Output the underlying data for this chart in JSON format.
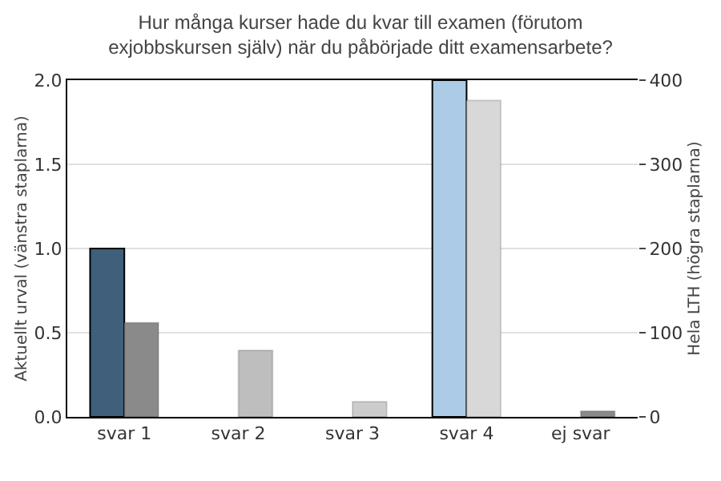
{
  "chart_data": {
    "type": "bar",
    "title": "Hur många kurser hade du kvar till examen (förutom exjobbskursen själv) när du påbörjade ditt examensarbete?",
    "categories": [
      "svar 1",
      "svar 2",
      "svar 3",
      "svar 4",
      "ej svar"
    ],
    "ylabel": "Aktuellt urval (vänstra staplarna)",
    "y2label": "Hela LTH (högra staplarna)",
    "series": [
      {
        "colors": [
          "#3f5f7a",
          "#3f5f7a",
          "#3f5f7a",
          "#abcbe6",
          "#3f5f7a"
        ],
        "values": [
          1.0,
          null,
          null,
          2.0,
          null
        ]
      },
      {
        "colors": [
          "#8a8a8a",
          "#bebebe",
          "#cccccc",
          "#d8d8d8",
          "#8a8a8a"
        ],
        "values": [
          112,
          79,
          18,
          376,
          7
        ],
        "axis": "y2"
      }
    ],
    "ylim": [
      0,
      2
    ],
    "yticks": [
      {
        "value": 0,
        "label": "0.0"
      },
      {
        "value": 0.5,
        "label": "0.5"
      },
      {
        "value": 1,
        "label": "1.0"
      },
      {
        "value": 1.5,
        "label": "1.5"
      },
      {
        "value": 2,
        "label": "2.0"
      }
    ],
    "y2lim": [
      0,
      400
    ],
    "y2ticks": [
      0,
      100,
      200,
      300,
      400
    ],
    "grid": "y"
  }
}
